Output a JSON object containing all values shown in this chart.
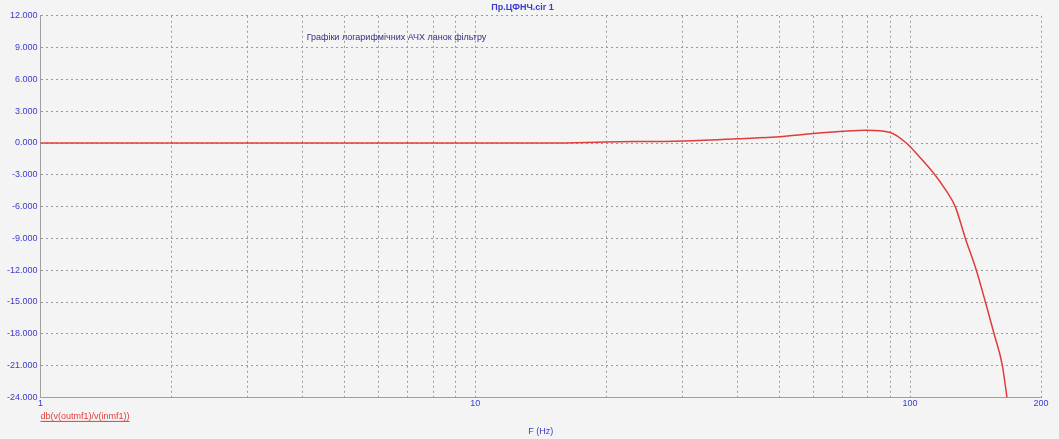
{
  "chart_data": {
    "type": "line",
    "title": "Пр.ЦФНЧ.cir 1",
    "xlabel": "F (Hz)",
    "annotations": [
      "Графіки логарифмічних АЧХ ланок фільтру"
    ],
    "log": "x",
    "grid": true,
    "legend": "bottom left",
    "marker": "none",
    "line_style": "solid",
    "xlim": [
      1,
      200
    ],
    "ylim": [
      -24,
      12
    ],
    "xticks": [
      1,
      {
        "value": 2,
        "label": null
      },
      {
        "value": 3,
        "label": null
      },
      {
        "value": 4,
        "label": null
      },
      {
        "value": 5,
        "label": null
      },
      {
        "value": 6,
        "label": null
      },
      {
        "value": 7,
        "label": null
      },
      {
        "value": 8,
        "label": null
      },
      {
        "value": 9,
        "label": null
      },
      10,
      {
        "value": 20,
        "label": null
      },
      {
        "value": 30,
        "label": null
      },
      {
        "value": 40,
        "label": null
      },
      {
        "value": 50,
        "label": null
      },
      {
        "value": 60,
        "label": null
      },
      {
        "value": 70,
        "label": null
      },
      {
        "value": 80,
        "label": null
      },
      {
        "value": 90,
        "label": null
      },
      100,
      200
    ],
    "yticks": [
      {
        "value": -24,
        "label": "-24.000"
      },
      {
        "value": -21,
        "label": "-21.000"
      },
      {
        "value": -18,
        "label": "-18.000"
      },
      {
        "value": -15,
        "label": "-15.000"
      },
      {
        "value": -12,
        "label": "-12.000"
      },
      {
        "value": -9,
        "label": "-9.000"
      },
      {
        "value": -6,
        "label": "-6.000"
      },
      {
        "value": -3,
        "label": "-3.000"
      },
      {
        "value": 0,
        "label": "0.000"
      },
      {
        "value": 3,
        "label": "3.000"
      },
      {
        "value": 6,
        "label": "6.000"
      },
      {
        "value": 9,
        "label": "9.000"
      },
      {
        "value": 12,
        "label": "12.000"
      }
    ],
    "series": [
      {
        "name": "db(v(outmf1)/v(inmf1))",
        "color": "#e03c3c",
        "x": [
          1,
          5,
          10,
          15,
          20,
          30,
          40,
          50,
          60,
          70,
          79,
          90,
          98,
          105,
          114,
          121,
          127,
          134,
          142,
          149,
          156,
          163,
          167
        ],
        "values": [
          0,
          0,
          0,
          0,
          0.1,
          0.2,
          0.4,
          0.6,
          0.9,
          1.1,
          1.2,
          1.0,
          0,
          -1.3,
          -3,
          -4.5,
          -6,
          -9,
          -12,
          -15,
          -18,
          -21,
          -24
        ]
      }
    ]
  }
}
